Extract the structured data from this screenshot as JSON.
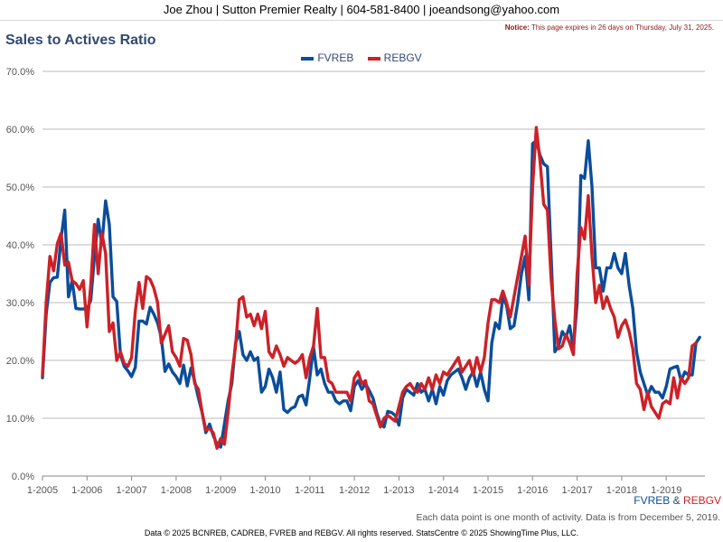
{
  "header": {
    "contact": "Joe Zhou | Sutton Premier Realty | 604-581-8400 | joeandsong@yahoo.com"
  },
  "notice": {
    "label": "Notice:",
    "text": " This page expires in 26 days on Thursday, July 31, 2025."
  },
  "footer": {
    "caption_a": "FVREB",
    "caption_sep": " & ",
    "caption_b": "REBGV",
    "note": "Each data point is one month of activity. Data is from December 5, 2019.",
    "copyright": "Data © 2025 BCNREB, CADREB, FVREB and REBGV. All rights reserved. StatsCentre © 2025 ShowingTime Plus, LLC."
  },
  "colors": {
    "fvreb": "#0b4d9b",
    "rebgv": "#cc2127",
    "title": "#2f4a73"
  },
  "chart_data": {
    "type": "line",
    "title": "Sales to Actives Ratio",
    "xlabel": "",
    "ylabel": "",
    "ylim": [
      0,
      70
    ],
    "grid": true,
    "legend_position": "top-center",
    "y_tick_labels": [
      "0.0%",
      "10.0%",
      "20.0%",
      "30.0%",
      "40.0%",
      "50.0%",
      "60.0%",
      "70.0%"
    ],
    "x_tick_labels": [
      "1-2005",
      "1-2006",
      "1-2007",
      "1-2008",
      "1-2009",
      "1-2010",
      "1-2011",
      "1-2012",
      "1-2013",
      "1-2014",
      "1-2015",
      "1-2016",
      "1-2017",
      "1-2018",
      "1-2019"
    ],
    "x_start": "2005-01",
    "x_frequency": "monthly",
    "series": [
      {
        "name": "FVREB",
        "color": "#0b4d9b",
        "values": [
          17.0,
          28.0,
          33.5,
          34.3,
          34.4,
          41.0,
          46.0,
          31.0,
          33.8,
          29.0,
          28.9,
          28.9,
          28.9,
          30.4,
          38.0,
          44.4,
          40.0,
          47.6,
          43.5,
          31.0,
          30.2,
          21.0,
          19.0,
          18.2,
          17.2,
          18.8,
          26.8,
          26.8,
          26.3,
          29.2,
          28.0,
          26.5,
          24.0,
          18.1,
          19.4,
          18.0,
          17.2,
          16.0,
          19.2,
          15.6,
          18.7,
          16.4,
          13.5,
          11.0,
          7.5,
          9.0,
          7.0,
          5.5,
          5.0,
          9.0,
          13.0,
          16.0,
          23.0,
          25.0,
          21.0,
          20.0,
          21.5,
          20.0,
          20.5,
          14.5,
          15.5,
          18.5,
          17.0,
          14.5,
          18.0,
          11.5,
          11.0,
          11.7,
          12.0,
          13.7,
          14.0,
          12.3,
          17.0,
          22.3,
          17.5,
          18.5,
          16.0,
          14.5,
          14.5,
          13.0,
          12.5,
          13.0,
          13.0,
          11.3,
          15.5,
          16.5,
          15.0,
          16.0,
          14.8,
          13.5,
          11.0,
          9.0,
          8.5,
          11.2,
          11.0,
          10.5,
          8.8,
          13.5,
          15.0,
          14.5,
          14.0,
          16.0,
          14.5,
          15.0,
          13.0,
          15.0,
          12.5,
          15.5,
          14.0,
          16.5,
          17.5,
          18.0,
          18.5,
          17.0,
          15.0,
          17.0,
          18.0,
          15.5,
          18.0,
          15.0,
          13.0,
          23.0,
          26.5,
          25.5,
          31.0,
          29.5,
          25.5,
          26.0,
          30.0,
          35.0,
          38.0,
          30.5,
          57.5,
          58.0,
          55.5,
          54.0,
          53.5,
          38.0,
          21.5,
          22.5,
          25.0,
          24.0,
          26.0,
          22.0,
          30.0,
          52.0,
          51.5,
          58.0,
          50.0,
          36.0,
          36.0,
          32.0,
          36.0,
          36.0,
          38.5,
          36.0,
          35.0,
          38.5,
          33.0,
          29.0,
          21.5,
          18.0,
          16.0,
          14.0,
          15.5,
          14.5,
          14.5,
          13.5,
          15.5,
          18.5,
          18.8,
          19.0,
          16.5,
          18.0,
          17.5,
          17.5,
          23.0,
          24.0
        ]
      },
      {
        "name": "REBGV",
        "color": "#cc2127",
        "values": [
          17.5,
          30.0,
          38.0,
          35.5,
          40.2,
          42.0,
          36.5,
          37.0,
          33.8,
          33.3,
          32.3,
          33.8,
          25.8,
          33.0,
          43.5,
          35.0,
          42.0,
          38.5,
          25.0,
          26.5,
          20.0,
          21.5,
          19.5,
          19.0,
          20.5,
          28.5,
          33.5,
          29.0,
          34.5,
          34.0,
          32.5,
          30.0,
          23.0,
          24.5,
          26.0,
          21.5,
          20.5,
          19.0,
          23.8,
          23.5,
          21.0,
          16.0,
          15.0,
          11.0,
          8.0,
          8.2,
          7.5,
          4.8,
          6.5,
          5.5,
          11.0,
          17.5,
          22.5,
          30.5,
          31.0,
          27.5,
          28.0,
          26.0,
          28.0,
          25.5,
          28.5,
          21.5,
          20.5,
          22.5,
          21.0,
          19.0,
          20.5,
          20.0,
          19.5,
          20.0,
          21.0,
          17.0,
          20.5,
          22.5,
          29.0,
          20.5,
          20.5,
          16.5,
          16.0,
          14.5,
          14.5,
          14.5,
          14.5,
          13.0,
          17.0,
          18.0,
          16.0,
          16.5,
          13.0,
          12.5,
          10.5,
          8.5,
          10.0,
          10.5,
          10.0,
          9.5,
          12.0,
          14.5,
          15.5,
          16.0,
          15.0,
          14.5,
          16.0,
          15.0,
          17.0,
          15.0,
          17.5,
          16.0,
          18.0,
          17.5,
          18.5,
          19.5,
          20.5,
          18.0,
          19.0,
          20.0,
          17.5,
          20.5,
          18.0,
          20.5,
          26.5,
          30.5,
          30.5,
          30.0,
          32.0,
          30.0,
          27.5,
          31.0,
          34.5,
          38.0,
          41.5,
          33.0,
          50.0,
          60.3,
          54.5,
          47.0,
          46.0,
          34.0,
          27.0,
          22.0,
          22.5,
          24.5,
          23.0,
          21.0,
          35.0,
          43.0,
          41.0,
          48.5,
          38.0,
          30.0,
          33.0,
          29.0,
          31.0,
          29.0,
          27.5,
          24.0,
          26.0,
          27.0,
          25.0,
          22.0,
          16.0,
          15.0,
          11.5,
          14.5,
          12.0,
          11.0,
          10.0,
          12.5,
          13.0,
          12.5,
          17.0,
          13.5,
          17.0,
          16.0,
          17.0,
          22.5,
          23.0
        ]
      }
    ]
  }
}
